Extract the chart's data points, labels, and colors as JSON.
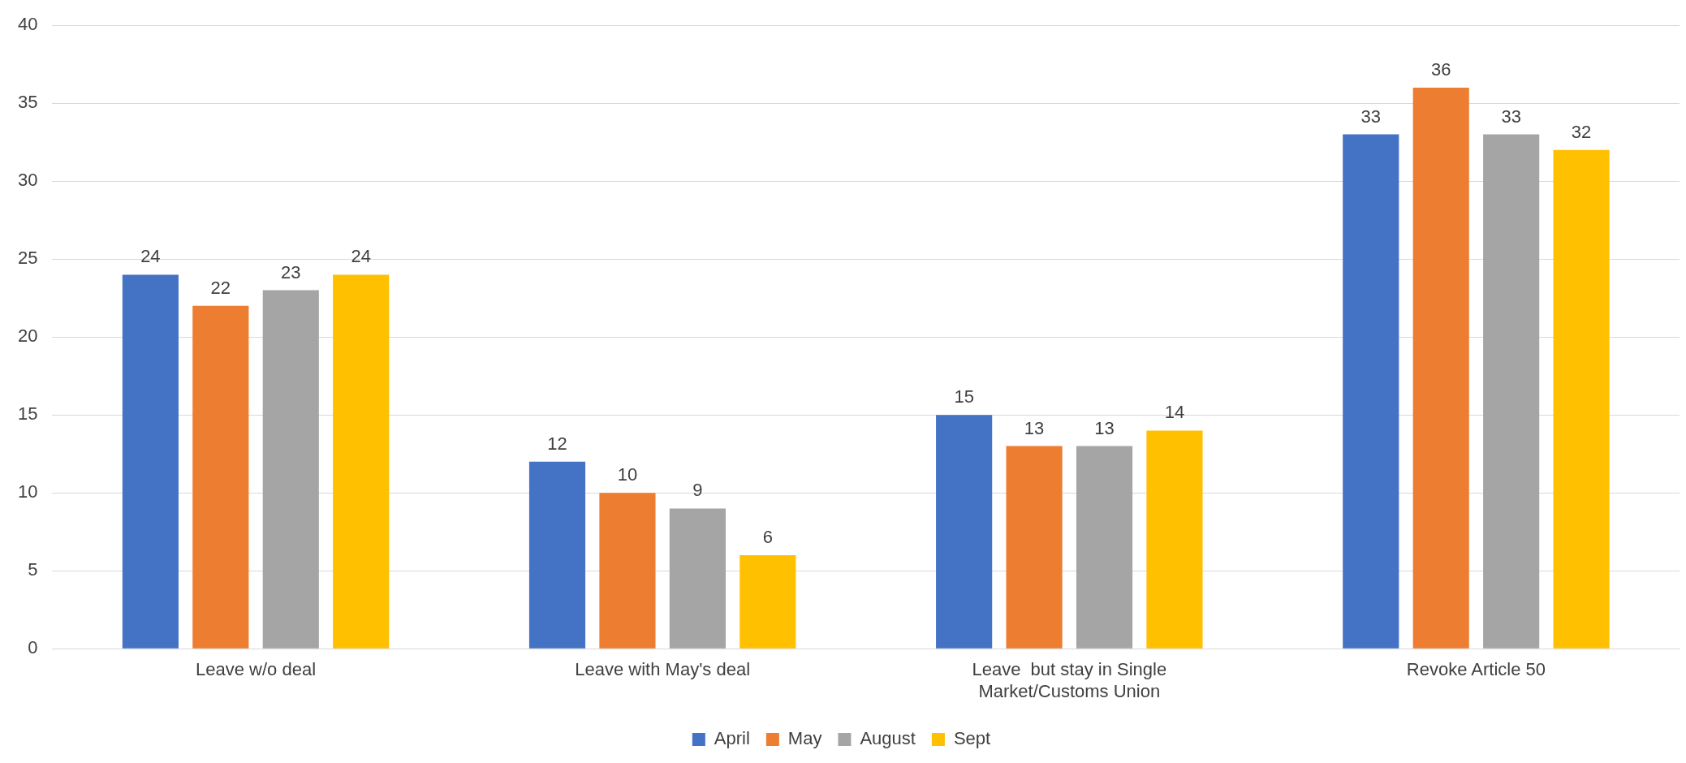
{
  "chart_data": {
    "type": "bar",
    "categories": [
      "Leave w/o deal",
      "Leave with May's deal",
      "Leave  but stay in Single Market/Customs Union",
      "Revoke Article 50"
    ],
    "series": [
      {
        "name": "April",
        "color": "#4472c4",
        "values": [
          24,
          12,
          15,
          33
        ]
      },
      {
        "name": "May",
        "color": "#ed7d31",
        "values": [
          22,
          10,
          13,
          36
        ]
      },
      {
        "name": "August",
        "color": "#a5a5a5",
        "values": [
          23,
          9,
          13,
          33
        ]
      },
      {
        "name": "Sept",
        "color": "#ffc000",
        "values": [
          24,
          6,
          14,
          32
        ]
      }
    ],
    "ylim": [
      0,
      40
    ],
    "yticks": [
      0,
      5,
      10,
      15,
      20,
      25,
      30,
      35,
      40
    ],
    "grid": "y",
    "legend": "bottom",
    "data_labels": true
  }
}
